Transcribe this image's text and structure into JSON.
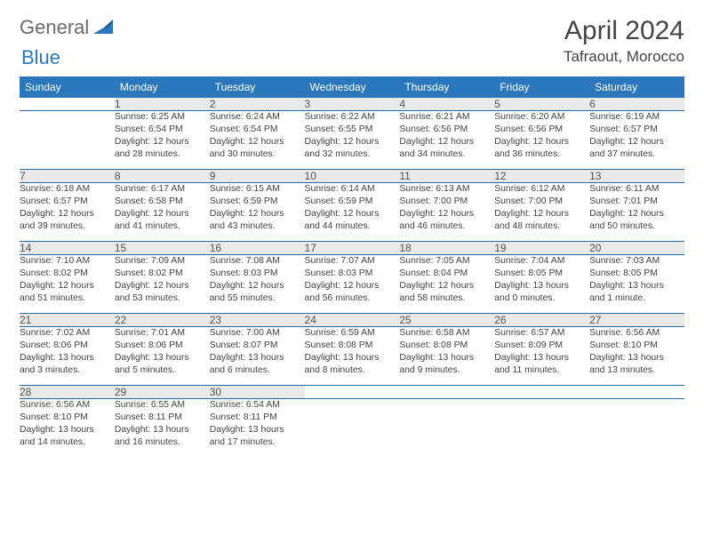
{
  "brand": {
    "part1": "General",
    "part2": "Blue"
  },
  "title": "April 2024",
  "location": "Tafraout, Morocco",
  "colors": {
    "header_bg": "#2a77bb",
    "header_fg": "#ffffff",
    "daynum_bg": "#e9e9e9",
    "rule": "#2a6aa0",
    "brand_gray": "#6b6b6b",
    "brand_blue": "#2a77bb"
  },
  "weekdays": [
    "Sunday",
    "Monday",
    "Tuesday",
    "Wednesday",
    "Thursday",
    "Friday",
    "Saturday"
  ],
  "weeks": [
    {
      "nums": [
        "",
        "1",
        "2",
        "3",
        "4",
        "5",
        "6"
      ],
      "cells": [
        null,
        {
          "sunrise": "Sunrise: 6:25 AM",
          "sunset": "Sunset: 6:54 PM",
          "day1": "Daylight: 12 hours",
          "day2": "and 28 minutes."
        },
        {
          "sunrise": "Sunrise: 6:24 AM",
          "sunset": "Sunset: 6:54 PM",
          "day1": "Daylight: 12 hours",
          "day2": "and 30 minutes."
        },
        {
          "sunrise": "Sunrise: 6:22 AM",
          "sunset": "Sunset: 6:55 PM",
          "day1": "Daylight: 12 hours",
          "day2": "and 32 minutes."
        },
        {
          "sunrise": "Sunrise: 6:21 AM",
          "sunset": "Sunset: 6:56 PM",
          "day1": "Daylight: 12 hours",
          "day2": "and 34 minutes."
        },
        {
          "sunrise": "Sunrise: 6:20 AM",
          "sunset": "Sunset: 6:56 PM",
          "day1": "Daylight: 12 hours",
          "day2": "and 36 minutes."
        },
        {
          "sunrise": "Sunrise: 6:19 AM",
          "sunset": "Sunset: 6:57 PM",
          "day1": "Daylight: 12 hours",
          "day2": "and 37 minutes."
        }
      ]
    },
    {
      "nums": [
        "7",
        "8",
        "9",
        "10",
        "11",
        "12",
        "13"
      ],
      "cells": [
        {
          "sunrise": "Sunrise: 6:18 AM",
          "sunset": "Sunset: 6:57 PM",
          "day1": "Daylight: 12 hours",
          "day2": "and 39 minutes."
        },
        {
          "sunrise": "Sunrise: 6:17 AM",
          "sunset": "Sunset: 6:58 PM",
          "day1": "Daylight: 12 hours",
          "day2": "and 41 minutes."
        },
        {
          "sunrise": "Sunrise: 6:15 AM",
          "sunset": "Sunset: 6:59 PM",
          "day1": "Daylight: 12 hours",
          "day2": "and 43 minutes."
        },
        {
          "sunrise": "Sunrise: 6:14 AM",
          "sunset": "Sunset: 6:59 PM",
          "day1": "Daylight: 12 hours",
          "day2": "and 44 minutes."
        },
        {
          "sunrise": "Sunrise: 6:13 AM",
          "sunset": "Sunset: 7:00 PM",
          "day1": "Daylight: 12 hours",
          "day2": "and 46 minutes."
        },
        {
          "sunrise": "Sunrise: 6:12 AM",
          "sunset": "Sunset: 7:00 PM",
          "day1": "Daylight: 12 hours",
          "day2": "and 48 minutes."
        },
        {
          "sunrise": "Sunrise: 6:11 AM",
          "sunset": "Sunset: 7:01 PM",
          "day1": "Daylight: 12 hours",
          "day2": "and 50 minutes."
        }
      ]
    },
    {
      "nums": [
        "14",
        "15",
        "16",
        "17",
        "18",
        "19",
        "20"
      ],
      "cells": [
        {
          "sunrise": "Sunrise: 7:10 AM",
          "sunset": "Sunset: 8:02 PM",
          "day1": "Daylight: 12 hours",
          "day2": "and 51 minutes."
        },
        {
          "sunrise": "Sunrise: 7:09 AM",
          "sunset": "Sunset: 8:02 PM",
          "day1": "Daylight: 12 hours",
          "day2": "and 53 minutes."
        },
        {
          "sunrise": "Sunrise: 7:08 AM",
          "sunset": "Sunset: 8:03 PM",
          "day1": "Daylight: 12 hours",
          "day2": "and 55 minutes."
        },
        {
          "sunrise": "Sunrise: 7:07 AM",
          "sunset": "Sunset: 8:03 PM",
          "day1": "Daylight: 12 hours",
          "day2": "and 56 minutes."
        },
        {
          "sunrise": "Sunrise: 7:05 AM",
          "sunset": "Sunset: 8:04 PM",
          "day1": "Daylight: 12 hours",
          "day2": "and 58 minutes."
        },
        {
          "sunrise": "Sunrise: 7:04 AM",
          "sunset": "Sunset: 8:05 PM",
          "day1": "Daylight: 13 hours",
          "day2": "and 0 minutes."
        },
        {
          "sunrise": "Sunrise: 7:03 AM",
          "sunset": "Sunset: 8:05 PM",
          "day1": "Daylight: 13 hours",
          "day2": "and 1 minute."
        }
      ]
    },
    {
      "nums": [
        "21",
        "22",
        "23",
        "24",
        "25",
        "26",
        "27"
      ],
      "cells": [
        {
          "sunrise": "Sunrise: 7:02 AM",
          "sunset": "Sunset: 8:06 PM",
          "day1": "Daylight: 13 hours",
          "day2": "and 3 minutes."
        },
        {
          "sunrise": "Sunrise: 7:01 AM",
          "sunset": "Sunset: 8:06 PM",
          "day1": "Daylight: 13 hours",
          "day2": "and 5 minutes."
        },
        {
          "sunrise": "Sunrise: 7:00 AM",
          "sunset": "Sunset: 8:07 PM",
          "day1": "Daylight: 13 hours",
          "day2": "and 6 minutes."
        },
        {
          "sunrise": "Sunrise: 6:59 AM",
          "sunset": "Sunset: 8:08 PM",
          "day1": "Daylight: 13 hours",
          "day2": "and 8 minutes."
        },
        {
          "sunrise": "Sunrise: 6:58 AM",
          "sunset": "Sunset: 8:08 PM",
          "day1": "Daylight: 13 hours",
          "day2": "and 9 minutes."
        },
        {
          "sunrise": "Sunrise: 6:57 AM",
          "sunset": "Sunset: 8:09 PM",
          "day1": "Daylight: 13 hours",
          "day2": "and 11 minutes."
        },
        {
          "sunrise": "Sunrise: 6:56 AM",
          "sunset": "Sunset: 8:10 PM",
          "day1": "Daylight: 13 hours",
          "day2": "and 13 minutes."
        }
      ]
    },
    {
      "nums": [
        "28",
        "29",
        "30",
        "",
        "",
        "",
        ""
      ],
      "cells": [
        {
          "sunrise": "Sunrise: 6:56 AM",
          "sunset": "Sunset: 8:10 PM",
          "day1": "Daylight: 13 hours",
          "day2": "and 14 minutes."
        },
        {
          "sunrise": "Sunrise: 6:55 AM",
          "sunset": "Sunset: 8:11 PM",
          "day1": "Daylight: 13 hours",
          "day2": "and 16 minutes."
        },
        {
          "sunrise": "Sunrise: 6:54 AM",
          "sunset": "Sunset: 8:11 PM",
          "day1": "Daylight: 13 hours",
          "day2": "and 17 minutes."
        },
        null,
        null,
        null,
        null
      ]
    }
  ]
}
